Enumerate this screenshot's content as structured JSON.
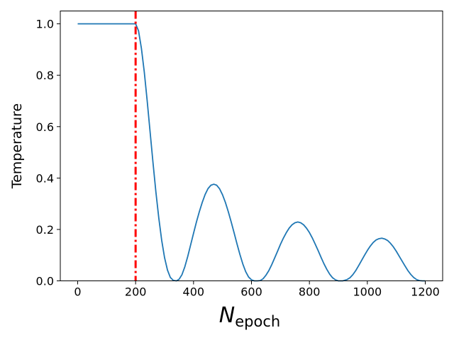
{
  "chart_data": {
    "type": "line",
    "title": "",
    "ylabel": "Temperature",
    "xlabel_main": "N",
    "xlabel_sub": "epoch",
    "xlim": [
      -60,
      1260
    ],
    "ylim": [
      0.0,
      1.05
    ],
    "grid": false,
    "x_ticks": [
      0,
      200,
      400,
      600,
      800,
      1000,
      1200
    ],
    "x_tick_labels": [
      "0",
      "200",
      "400",
      "600",
      "800",
      "1000",
      "1200"
    ],
    "y_ticks": [
      0.0,
      0.2,
      0.4,
      0.6,
      0.8,
      1.0
    ],
    "y_tick_labels": [
      "0.0",
      "0.2",
      "0.4",
      "0.6",
      "0.8",
      "1.0"
    ],
    "series": [
      {
        "color": "#1f77b4",
        "points": [
          [
            0,
            1.0
          ],
          [
            50,
            1.0
          ],
          [
            100,
            1.0
          ],
          [
            150,
            1.0
          ],
          [
            200,
            1.0
          ],
          [
            210,
            0.973
          ],
          [
            220,
            0.905
          ],
          [
            230,
            0.812
          ],
          [
            240,
            0.7
          ],
          [
            250,
            0.58
          ],
          [
            260,
            0.46
          ],
          [
            270,
            0.346
          ],
          [
            280,
            0.245
          ],
          [
            290,
            0.158
          ],
          [
            300,
            0.09
          ],
          [
            310,
            0.042
          ],
          [
            320,
            0.013
          ],
          [
            330,
            0.002
          ],
          [
            341,
            0.0
          ],
          [
            350,
            0.006
          ],
          [
            360,
            0.024
          ],
          [
            370,
            0.055
          ],
          [
            380,
            0.095
          ],
          [
            390,
            0.14
          ],
          [
            400,
            0.185
          ],
          [
            410,
            0.229
          ],
          [
            420,
            0.269
          ],
          [
            430,
            0.305
          ],
          [
            440,
            0.336
          ],
          [
            450,
            0.359
          ],
          [
            460,
            0.372
          ],
          [
            470,
            0.376
          ],
          [
            480,
            0.372
          ],
          [
            490,
            0.358
          ],
          [
            500,
            0.335
          ],
          [
            510,
            0.305
          ],
          [
            520,
            0.269
          ],
          [
            530,
            0.229
          ],
          [
            540,
            0.187
          ],
          [
            550,
            0.144
          ],
          [
            560,
            0.103
          ],
          [
            570,
            0.066
          ],
          [
            580,
            0.036
          ],
          [
            590,
            0.015
          ],
          [
            600,
            0.004
          ],
          [
            610,
            0.0
          ],
          [
            620,
            0.0
          ],
          [
            630,
            0.001
          ],
          [
            640,
            0.008
          ],
          [
            650,
            0.022
          ],
          [
            660,
            0.04
          ],
          [
            670,
            0.063
          ],
          [
            680,
            0.089
          ],
          [
            690,
            0.115
          ],
          [
            700,
            0.142
          ],
          [
            710,
            0.166
          ],
          [
            720,
            0.187
          ],
          [
            730,
            0.205
          ],
          [
            740,
            0.218
          ],
          [
            750,
            0.226
          ],
          [
            760,
            0.229
          ],
          [
            770,
            0.226
          ],
          [
            780,
            0.218
          ],
          [
            790,
            0.205
          ],
          [
            800,
            0.188
          ],
          [
            810,
            0.167
          ],
          [
            820,
            0.143
          ],
          [
            830,
            0.118
          ],
          [
            840,
            0.092
          ],
          [
            850,
            0.067
          ],
          [
            860,
            0.045
          ],
          [
            870,
            0.026
          ],
          [
            880,
            0.012
          ],
          [
            890,
            0.004
          ],
          [
            900,
            0.0
          ],
          [
            915,
            0.0
          ],
          [
            930,
            0.005
          ],
          [
            940,
            0.012
          ],
          [
            950,
            0.024
          ],
          [
            960,
            0.04
          ],
          [
            970,
            0.059
          ],
          [
            980,
            0.079
          ],
          [
            990,
            0.099
          ],
          [
            1000,
            0.118
          ],
          [
            1010,
            0.135
          ],
          [
            1020,
            0.149
          ],
          [
            1030,
            0.159
          ],
          [
            1040,
            0.164
          ],
          [
            1050,
            0.166
          ],
          [
            1060,
            0.163
          ],
          [
            1070,
            0.157
          ],
          [
            1080,
            0.146
          ],
          [
            1090,
            0.132
          ],
          [
            1100,
            0.115
          ],
          [
            1110,
            0.096
          ],
          [
            1120,
            0.077
          ],
          [
            1130,
            0.058
          ],
          [
            1140,
            0.04
          ],
          [
            1150,
            0.025
          ],
          [
            1160,
            0.013
          ],
          [
            1170,
            0.005
          ],
          [
            1180,
            0.001
          ],
          [
            1190,
            0.0
          ],
          [
            1200,
            0.0
          ]
        ]
      }
    ],
    "vlines": [
      {
        "x": 200,
        "color": "#ff0000",
        "style": "dash-dot"
      }
    ]
  }
}
